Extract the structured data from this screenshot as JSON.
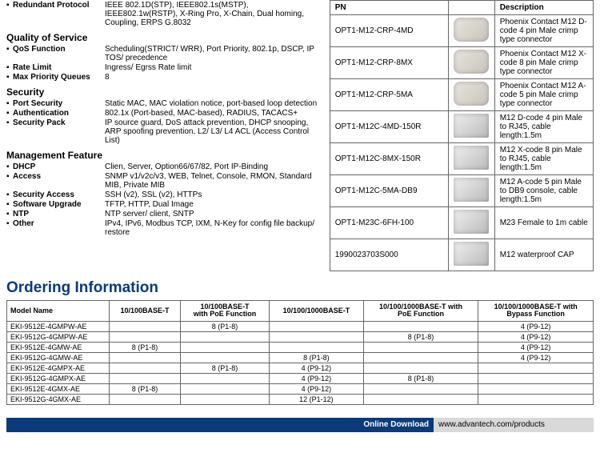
{
  "specs": {
    "redundant": {
      "key": "Redundant Protocol",
      "val": "IEEE 802.1D(STP), IEEE802.1s(MSTP), IEEE802.1w(RSTP), X-Ring Pro, X-Chain, Dual homing, Coupling, ERPS G.8032"
    },
    "qos_head": "Quality of Service",
    "qos_func": {
      "key": "QoS Function",
      "val": "Scheduling(STRICT/ WRR), Port Priority, 802.1p, DSCP, IP TOS/ precedence"
    },
    "rate_limit": {
      "key": "Rate Limit",
      "val": "Ingress/ Egrss Rate limit"
    },
    "max_pq": {
      "key": "Max Priority Queues",
      "val": "8"
    },
    "sec_head": "Security",
    "port_sec": {
      "key": "Port Security",
      "val": "Static MAC, MAC violation notice, port-based loop detection"
    },
    "auth": {
      "key": "Authentication",
      "val": "802.1x (Port-based, MAC-based), RADIUS, TACACS+"
    },
    "sec_pack": {
      "key": "Security Pack",
      "val": "IP source guard, DoS attack prevention, DHCP snooping, ARP spoofing prevention, L2/ L3/ L4 ACL (Access Control List)"
    },
    "mgmt_head": "Management Feature",
    "dhcp": {
      "key": "DHCP",
      "val": "Clien, Server, Option66/67/82, Port IP-Binding"
    },
    "access": {
      "key": "Access",
      "val": "SNMP v1/v2c/v3, WEB, Telnet, Console, RMON, Standard MIB, Private MIB"
    },
    "sec_access": {
      "key": "Security Access",
      "val": "SSH (v2), SSL (v2), HTTPs"
    },
    "sw_upgrade": {
      "key": "Software Upgrade",
      "val": "TFTP, HTTP, Dual Image"
    },
    "ntp": {
      "key": "NTP",
      "val": "NTP server/ client, SNTP"
    },
    "other": {
      "key": "Other",
      "val": "IPv4, IPv6, Modbus TCP, IXM, N-Key for config file backup/ restore"
    }
  },
  "pn_table": {
    "head_pn": "PN",
    "head_desc": "Description",
    "rows": [
      {
        "pn": "OPT1-M12-CRP-4MD",
        "desc": "Phoenix Contact M12 D-code 4 pin Male crimp type connector"
      },
      {
        "pn": "OPT1-M12-CRP-8MX",
        "desc": "Phoenix Contact M12 X-code 8 pin Male crimp type connector"
      },
      {
        "pn": "OPT1-M12-CRP-5MA",
        "desc": "Phoenix Contact M12 A-code 5 pin Male crimp type connector"
      },
      {
        "pn": "OPT1-M12C-4MD-150R",
        "desc": "M12 D-code 4 pin Male to RJ45, cable length:1.5m"
      },
      {
        "pn": "OPT1-M12C-8MX-150R",
        "desc": "M12 X-code 8 pin Male to RJ45, cable length:1.5m"
      },
      {
        "pn": "OPT1-M12C-5MA-DB9",
        "desc": "M12 A-code 5 pin Male to DB9 console, cable length:1.5m"
      },
      {
        "pn": "OPT1-M23C-6FH-100",
        "desc": "M23 Female to 1m cable"
      },
      {
        "pn": "1990023703S000",
        "desc": "M12 waterproof CAP"
      }
    ]
  },
  "ordering_title": "Ordering Information",
  "ord_table": {
    "head": {
      "model": "Model Name",
      "c1": "10/100BASE-T",
      "c2": "10/100BASE-T\nwith PoE Function",
      "c3": "10/100/1000BASE-T",
      "c4": "10/100/1000BASE-T with\nPoE Function",
      "c5": "10/100/1000BASE-T with\nBypass Function"
    },
    "rows": [
      {
        "model": "EKI-9512E-4GMPW-AE",
        "c1": "",
        "c2": "8 (P1-8)",
        "c3": "",
        "c4": "",
        "c5": "4 (P9-12)"
      },
      {
        "model": "EKI-9512G-4GMPW-AE",
        "c1": "",
        "c2": "",
        "c3": "",
        "c4": "8 (P1-8)",
        "c5": "4 (P9-12)"
      },
      {
        "model": "EKI-9512E-4GMW-AE",
        "c1": "8 (P1-8)",
        "c2": "",
        "c3": "",
        "c4": "",
        "c5": "4 (P9-12)"
      },
      {
        "model": "EKI-9512G-4GMW-AE",
        "c1": "",
        "c2": "",
        "c3": "8 (P1-8)",
        "c4": "",
        "c5": "4 (P9-12)"
      },
      {
        "model": "EKI-9512E-4GMPX-AE",
        "c1": "",
        "c2": "8 (P1-8)",
        "c3": "4 (P9-12)",
        "c4": "",
        "c5": ""
      },
      {
        "model": "EKI-9512G-4GMPX-AE",
        "c1": "",
        "c2": "",
        "c3": "4 (P9-12)",
        "c4": "8 (P1-8)",
        "c5": ""
      },
      {
        "model": "EKI-9512E-4GMX-AE",
        "c1": "8 (P1-8)",
        "c2": "",
        "c3": "4 (P9-12)",
        "c4": "",
        "c5": ""
      },
      {
        "model": "EKI-9512G-4GMX-AE",
        "c1": "",
        "c2": "",
        "c3": "12 (P1-12)",
        "c4": "",
        "c5": ""
      }
    ]
  },
  "download_bar": {
    "label": "Online Download",
    "url": "www.advantech.com/products"
  }
}
